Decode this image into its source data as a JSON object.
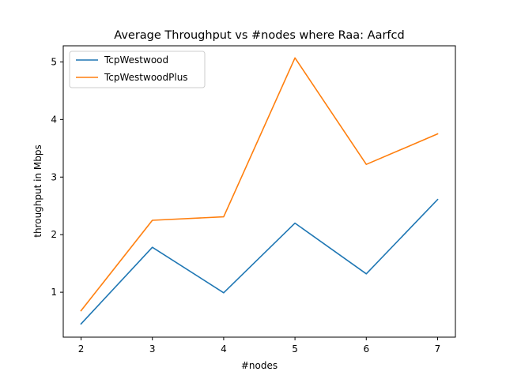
{
  "chart_data": {
    "type": "line",
    "title": "Average Throughput vs #nodes where Raa: Aarfcd",
    "xlabel": "#nodes",
    "ylabel": "throughput in Mbps",
    "x": [
      2,
      3,
      4,
      5,
      6,
      7
    ],
    "xlim": [
      1.75,
      7.25
    ],
    "ylim": [
      0.22,
      5.28
    ],
    "xticks": [
      "2",
      "3",
      "4",
      "5",
      "6",
      "7"
    ],
    "yticks": [
      "1",
      "2",
      "3",
      "4",
      "5"
    ],
    "grid": false,
    "legend_position": "upper-left",
    "series": [
      {
        "name": "TcpWestwood",
        "color": "#1f77b4",
        "values": [
          0.45,
          1.78,
          0.99,
          2.2,
          1.32,
          2.61
        ]
      },
      {
        "name": "TcpWestwoodPlus",
        "color": "#ff7f0e",
        "values": [
          0.68,
          2.25,
          2.31,
          5.07,
          3.22,
          3.75
        ]
      }
    ]
  }
}
